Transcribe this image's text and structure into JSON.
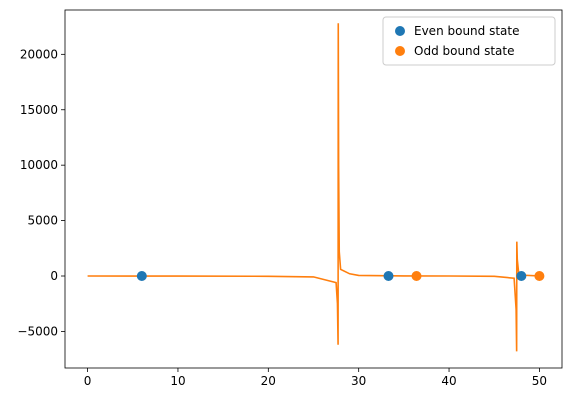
{
  "chart_data": {
    "type": "line",
    "xlim": [
      -2.5,
      52.5
    ],
    "ylim": [
      -8300,
      24000
    ],
    "x_ticks": [
      0,
      10,
      20,
      30,
      40,
      50
    ],
    "y_ticks": [
      -5000,
      0,
      5000,
      10000,
      15000,
      20000
    ],
    "grid": false,
    "legend_position": "top-right",
    "colors": {
      "even": "#1f77b4",
      "odd": "#ff7f0e"
    },
    "line": {
      "color": "#ff7f0e",
      "points": [
        [
          0,
          0
        ],
        [
          10,
          -5
        ],
        [
          20,
          -25
        ],
        [
          25,
          -80
        ],
        [
          27.5,
          -600
        ],
        [
          27.65,
          -2500
        ],
        [
          27.72,
          -6200
        ],
        [
          27.74,
          22800
        ],
        [
          27.78,
          10000
        ],
        [
          27.85,
          2200
        ],
        [
          28,
          600
        ],
        [
          29,
          200
        ],
        [
          30,
          50
        ],
        [
          35,
          10
        ],
        [
          40,
          0
        ],
        [
          45,
          -30
        ],
        [
          47.2,
          -200
        ],
        [
          47.42,
          -3000
        ],
        [
          47.48,
          -6800
        ],
        [
          47.5,
          3100
        ],
        [
          47.55,
          1500
        ],
        [
          47.7,
          300
        ],
        [
          48,
          80
        ],
        [
          50,
          5
        ]
      ]
    },
    "series": [
      {
        "name": "Even bound state",
        "color": "#1f77b4",
        "points": [
          [
            6.0,
            0
          ],
          [
            33.3,
            0
          ],
          [
            48.0,
            0
          ]
        ]
      },
      {
        "name": "Odd bound state",
        "color": "#ff7f0e",
        "points": [
          [
            36.4,
            0
          ],
          [
            50.0,
            0
          ]
        ]
      }
    ]
  }
}
